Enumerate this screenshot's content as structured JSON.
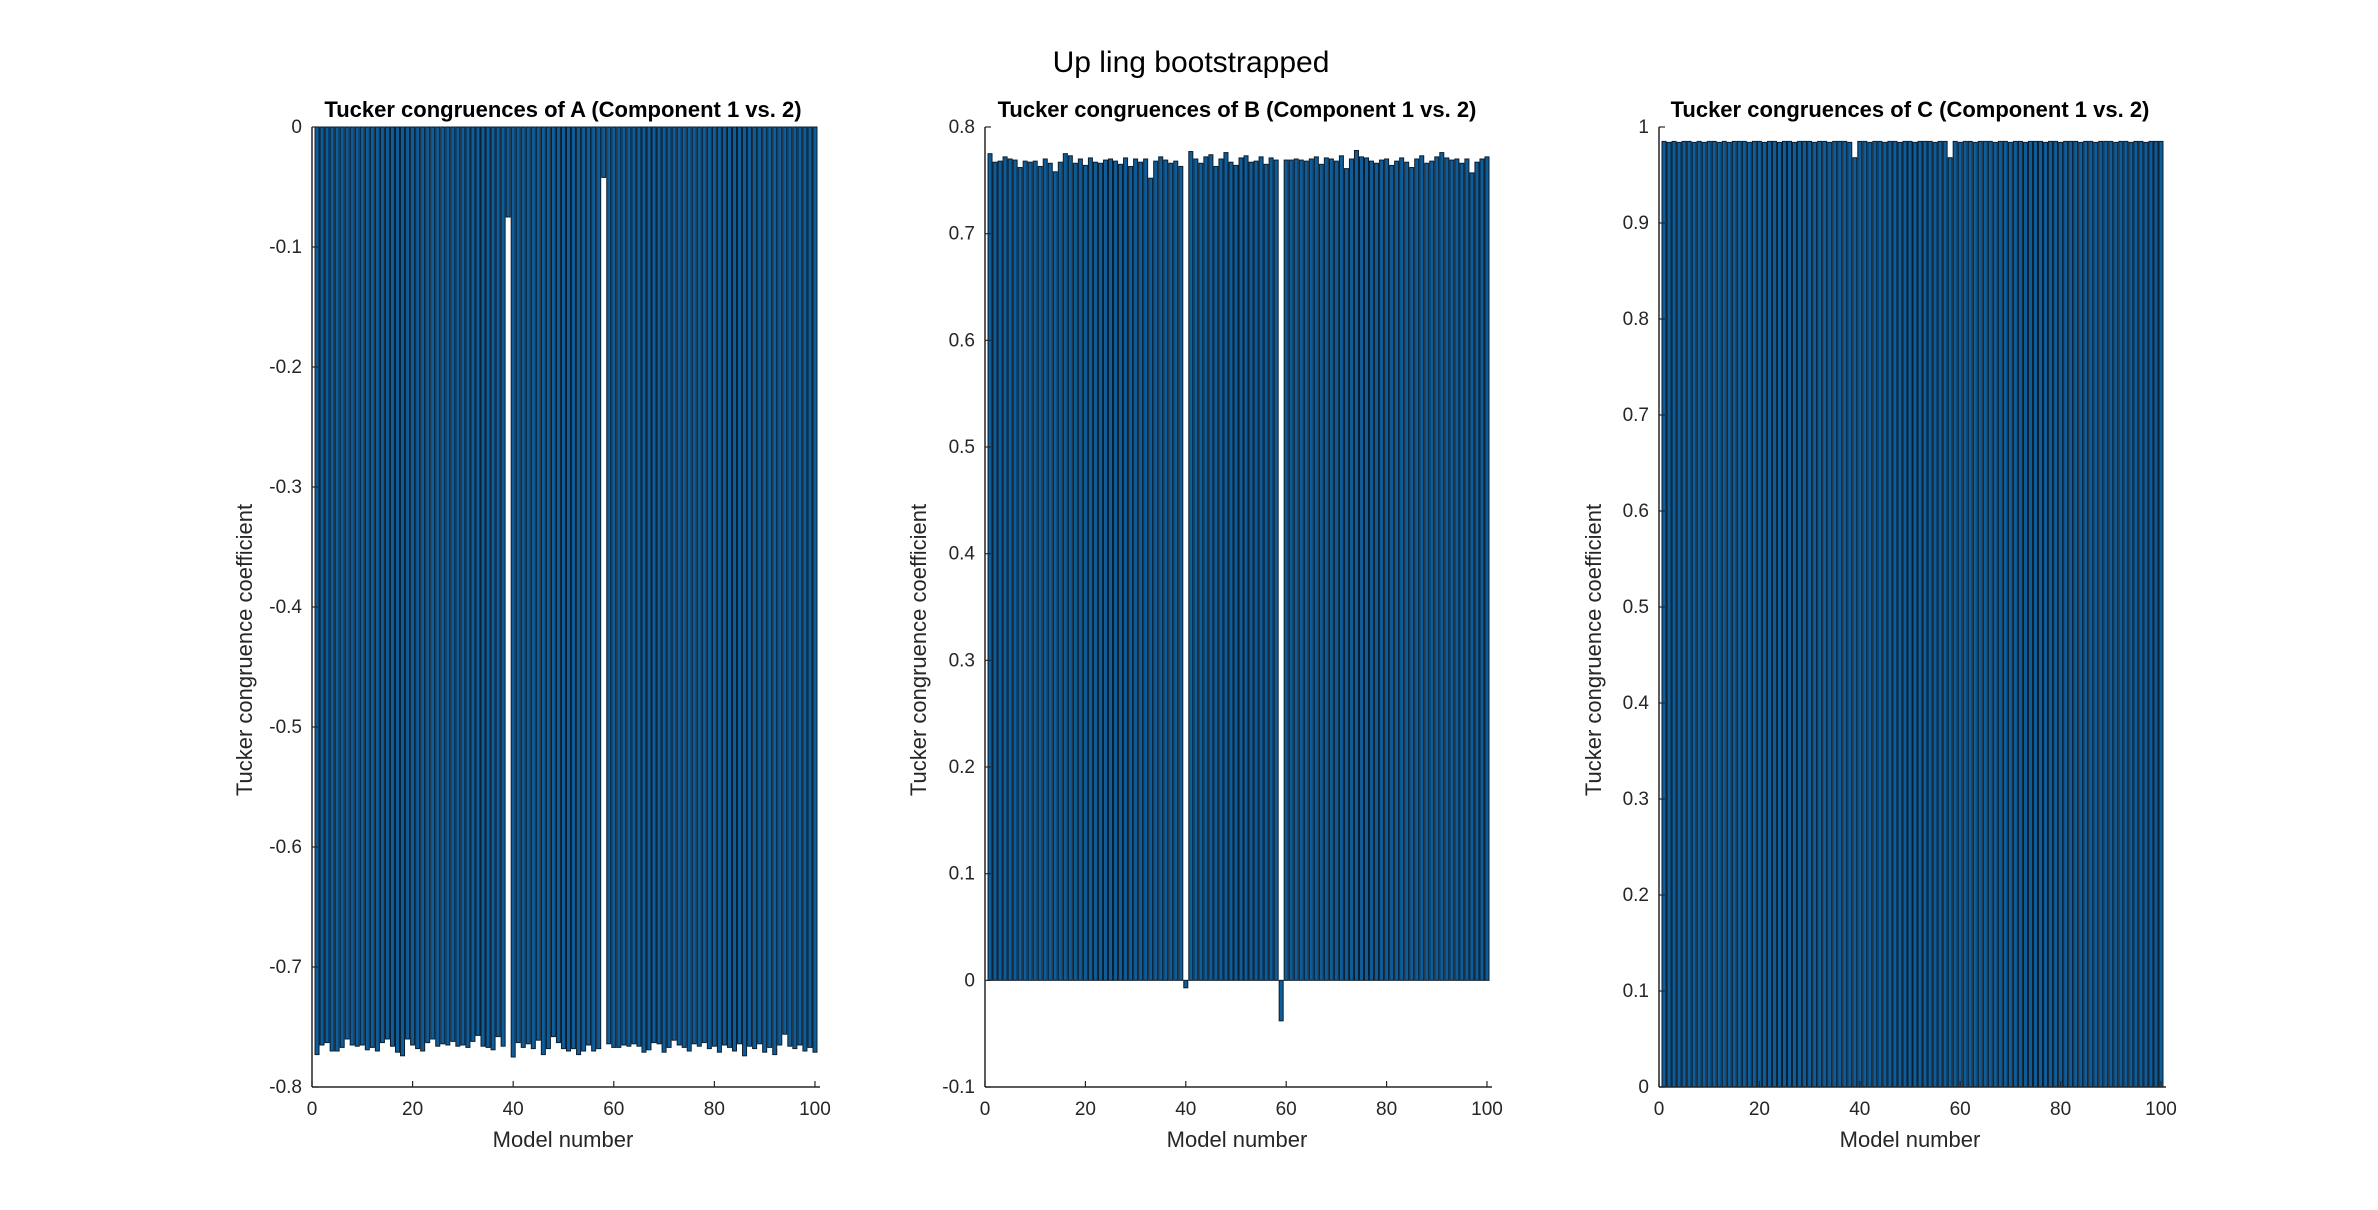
{
  "figure": {
    "title": "Up ling bootstrapped"
  },
  "colors": {
    "bar_fill": "#0E5C98",
    "bar_edge": "#0B1E30",
    "axis": "#262626"
  },
  "chart_data": [
    {
      "type": "bar",
      "title": "Tucker congruences of A (Component 1 vs. 2)",
      "xlabel": "Model number",
      "ylabel": "Tucker congruence coefficient",
      "xlim": [
        0,
        101
      ],
      "ylim": [
        -0.8,
        0
      ],
      "xticks": [
        0,
        20,
        40,
        60,
        80,
        100
      ],
      "xtick_labels": [
        "0",
        "20",
        "40",
        "60",
        "80",
        "100"
      ],
      "yticks": [
        0,
        -0.1,
        -0.2,
        -0.3,
        -0.4,
        -0.5,
        -0.6,
        -0.7,
        -0.8
      ],
      "ytick_labels": [
        "0",
        "-0.1",
        "-0.2",
        "-0.3",
        "-0.4",
        "-0.5",
        "-0.6",
        "-0.7",
        "-0.8"
      ],
      "x": [
        1,
        2,
        3,
        4,
        5,
        6,
        7,
        8,
        9,
        10,
        11,
        12,
        13,
        14,
        15,
        16,
        17,
        18,
        19,
        20,
        21,
        22,
        23,
        24,
        25,
        26,
        27,
        28,
        29,
        30,
        31,
        32,
        33,
        34,
        35,
        36,
        37,
        38,
        39,
        40,
        41,
        42,
        43,
        44,
        45,
        46,
        47,
        48,
        49,
        50,
        51,
        52,
        53,
        54,
        55,
        56,
        57,
        58,
        59,
        60,
        61,
        62,
        63,
        64,
        65,
        66,
        67,
        68,
        69,
        70,
        71,
        72,
        73,
        74,
        75,
        76,
        77,
        78,
        79,
        80,
        81,
        82,
        83,
        84,
        85,
        86,
        87,
        88,
        89,
        90,
        91,
        92,
        93,
        94,
        95,
        96,
        97,
        98,
        99,
        100
      ],
      "values": [
        -0.773,
        -0.765,
        -0.763,
        -0.77,
        -0.77,
        -0.767,
        -0.76,
        -0.765,
        -0.766,
        -0.765,
        -0.769,
        -0.767,
        -0.77,
        -0.763,
        -0.76,
        -0.766,
        -0.771,
        -0.774,
        -0.76,
        -0.765,
        -0.768,
        -0.77,
        -0.763,
        -0.76,
        -0.766,
        -0.764,
        -0.765,
        -0.762,
        -0.766,
        -0.765,
        -0.767,
        -0.762,
        -0.757,
        -0.766,
        -0.767,
        -0.769,
        -0.758,
        -0.766,
        -0.075,
        -0.775,
        -0.763,
        -0.767,
        -0.764,
        -0.768,
        -0.761,
        -0.773,
        -0.768,
        -0.758,
        -0.763,
        -0.768,
        -0.77,
        -0.768,
        -0.773,
        -0.77,
        -0.765,
        -0.77,
        -0.768,
        -0.042,
        -0.764,
        -0.767,
        -0.767,
        -0.765,
        -0.766,
        -0.764,
        -0.766,
        -0.771,
        -0.769,
        -0.763,
        -0.764,
        -0.771,
        -0.767,
        -0.761,
        -0.765,
        -0.767,
        -0.77,
        -0.764,
        -0.766,
        -0.763,
        -0.768,
        -0.766,
        -0.771,
        -0.765,
        -0.767,
        -0.77,
        -0.764,
        -0.774,
        -0.766,
        -0.768,
        -0.764,
        -0.771,
        -0.767,
        -0.773,
        -0.765,
        -0.756,
        -0.766,
        -0.768,
        -0.765,
        -0.77,
        -0.767,
        -0.771
      ]
    },
    {
      "type": "bar",
      "title": "Tucker congruences of B (Component 1 vs. 2)",
      "xlabel": "Model number",
      "ylabel": "Tucker congruence coefficient",
      "xlim": [
        0,
        101
      ],
      "ylim": [
        -0.1,
        0.8
      ],
      "xticks": [
        0,
        20,
        40,
        60,
        80,
        100
      ],
      "xtick_labels": [
        "0",
        "20",
        "40",
        "60",
        "80",
        "100"
      ],
      "yticks": [
        0.8,
        0.7,
        0.6,
        0.5,
        0.4,
        0.3,
        0.2,
        0.1,
        0,
        -0.1
      ],
      "ytick_labels": [
        "0.8",
        "0.7",
        "0.6",
        "0.5",
        "0.4",
        "0.3",
        "0.2",
        "0.1",
        "0",
        "-0.1"
      ],
      "x": [
        1,
        2,
        3,
        4,
        5,
        6,
        7,
        8,
        9,
        10,
        11,
        12,
        13,
        14,
        15,
        16,
        17,
        18,
        19,
        20,
        21,
        22,
        23,
        24,
        25,
        26,
        27,
        28,
        29,
        30,
        31,
        32,
        33,
        34,
        35,
        36,
        37,
        38,
        39,
        40,
        41,
        42,
        43,
        44,
        45,
        46,
        47,
        48,
        49,
        50,
        51,
        52,
        53,
        54,
        55,
        56,
        57,
        58,
        59,
        60,
        61,
        62,
        63,
        64,
        65,
        66,
        67,
        68,
        69,
        70,
        71,
        72,
        73,
        74,
        75,
        76,
        77,
        78,
        79,
        80,
        81,
        82,
        83,
        84,
        85,
        86,
        87,
        88,
        89,
        90,
        91,
        92,
        93,
        94,
        95,
        96,
        97,
        98,
        99,
        100
      ],
      "values": [
        0.775,
        0.767,
        0.768,
        0.772,
        0.77,
        0.769,
        0.762,
        0.768,
        0.767,
        0.768,
        0.763,
        0.77,
        0.766,
        0.758,
        0.767,
        0.775,
        0.773,
        0.766,
        0.77,
        0.764,
        0.771,
        0.767,
        0.766,
        0.769,
        0.77,
        0.768,
        0.765,
        0.771,
        0.763,
        0.77,
        0.767,
        0.77,
        0.752,
        0.768,
        0.772,
        0.769,
        0.766,
        0.768,
        0.763,
        -0.007,
        0.777,
        0.77,
        0.766,
        0.772,
        0.774,
        0.763,
        0.77,
        0.776,
        0.767,
        0.764,
        0.771,
        0.773,
        0.767,
        0.768,
        0.772,
        0.765,
        0.771,
        0.769,
        -0.038,
        0.769,
        0.769,
        0.77,
        0.769,
        0.768,
        0.77,
        0.772,
        0.765,
        0.771,
        0.77,
        0.768,
        0.773,
        0.761,
        0.77,
        0.778,
        0.772,
        0.771,
        0.768,
        0.766,
        0.769,
        0.77,
        0.764,
        0.768,
        0.771,
        0.767,
        0.762,
        0.77,
        0.773,
        0.766,
        0.768,
        0.772,
        0.776,
        0.771,
        0.769,
        0.77,
        0.766,
        0.77,
        0.757,
        0.767,
        0.77,
        0.772
      ]
    },
    {
      "type": "bar",
      "title": "Tucker congruences of C (Component 1 vs. 2)",
      "xlabel": "Model number",
      "ylabel": "Tucker congruence coefficient",
      "xlim": [
        0,
        101
      ],
      "ylim": [
        0,
        1
      ],
      "xticks": [
        0,
        20,
        40,
        60,
        80,
        100
      ],
      "xtick_labels": [
        "0",
        "20",
        "40",
        "60",
        "80",
        "100"
      ],
      "yticks": [
        1,
        0.9,
        0.8,
        0.7,
        0.6,
        0.5,
        0.4,
        0.3,
        0.2,
        0.1,
        0
      ],
      "ytick_labels": [
        "1",
        "0.9",
        "0.8",
        "0.7",
        "0.6",
        "0.5",
        "0.4",
        "0.3",
        "0.2",
        "0.1",
        "0"
      ],
      "x": [
        1,
        2,
        3,
        4,
        5,
        6,
        7,
        8,
        9,
        10,
        11,
        12,
        13,
        14,
        15,
        16,
        17,
        18,
        19,
        20,
        21,
        22,
        23,
        24,
        25,
        26,
        27,
        28,
        29,
        30,
        31,
        32,
        33,
        34,
        35,
        36,
        37,
        38,
        39,
        40,
        41,
        42,
        43,
        44,
        45,
        46,
        47,
        48,
        49,
        50,
        51,
        52,
        53,
        54,
        55,
        56,
        57,
        58,
        59,
        60,
        61,
        62,
        63,
        64,
        65,
        66,
        67,
        68,
        69,
        70,
        71,
        72,
        73,
        74,
        75,
        76,
        77,
        78,
        79,
        80,
        81,
        82,
        83,
        84,
        85,
        86,
        87,
        88,
        89,
        90,
        91,
        92,
        93,
        94,
        95,
        96,
        97,
        98,
        99,
        100
      ],
      "values": [
        0.985,
        0.984,
        0.985,
        0.984,
        0.985,
        0.985,
        0.984,
        0.985,
        0.984,
        0.985,
        0.985,
        0.984,
        0.985,
        0.984,
        0.985,
        0.985,
        0.985,
        0.984,
        0.985,
        0.985,
        0.984,
        0.985,
        0.985,
        0.984,
        0.985,
        0.985,
        0.984,
        0.985,
        0.985,
        0.985,
        0.984,
        0.985,
        0.985,
        0.984,
        0.985,
        0.985,
        0.985,
        0.984,
        0.968,
        0.985,
        0.985,
        0.984,
        0.985,
        0.985,
        0.984,
        0.985,
        0.985,
        0.984,
        0.985,
        0.985,
        0.984,
        0.985,
        0.985,
        0.985,
        0.984,
        0.985,
        0.985,
        0.968,
        0.985,
        0.984,
        0.985,
        0.985,
        0.984,
        0.985,
        0.985,
        0.985,
        0.984,
        0.985,
        0.985,
        0.984,
        0.985,
        0.985,
        0.984,
        0.985,
        0.985,
        0.985,
        0.984,
        0.985,
        0.985,
        0.984,
        0.985,
        0.985,
        0.985,
        0.984,
        0.985,
        0.985,
        0.984,
        0.985,
        0.985,
        0.985,
        0.984,
        0.985,
        0.985,
        0.984,
        0.985,
        0.985,
        0.984,
        0.985,
        0.985,
        0.985
      ]
    }
  ]
}
